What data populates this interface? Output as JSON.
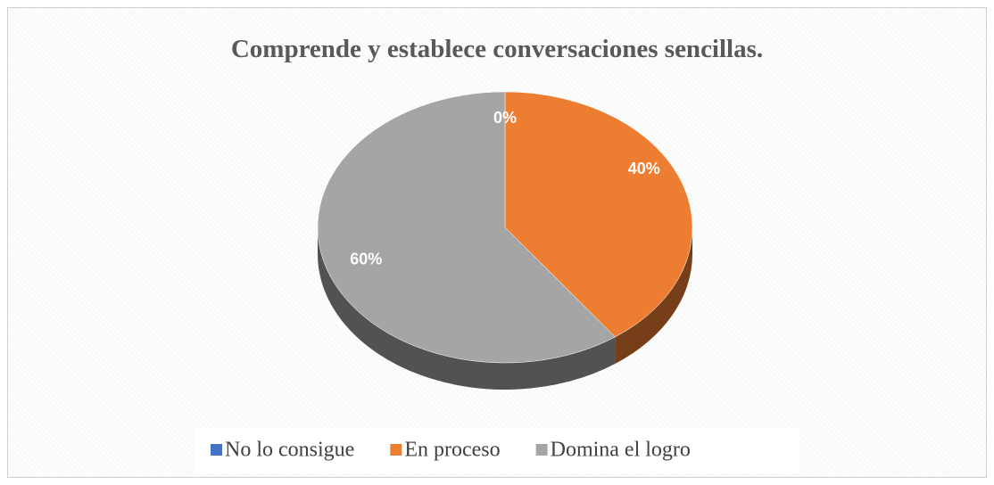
{
  "chart_data": {
    "type": "pie",
    "title": "Comprende y establece conversaciones sencillas.",
    "categories": [
      "No lo consigue",
      "En proceso",
      "Domina el logro"
    ],
    "values": [
      0,
      40,
      60
    ],
    "value_labels": [
      "0%",
      "40%",
      "60%"
    ],
    "colors": [
      "#4472c4",
      "#ed7d31",
      "#a5a5a5"
    ]
  }
}
